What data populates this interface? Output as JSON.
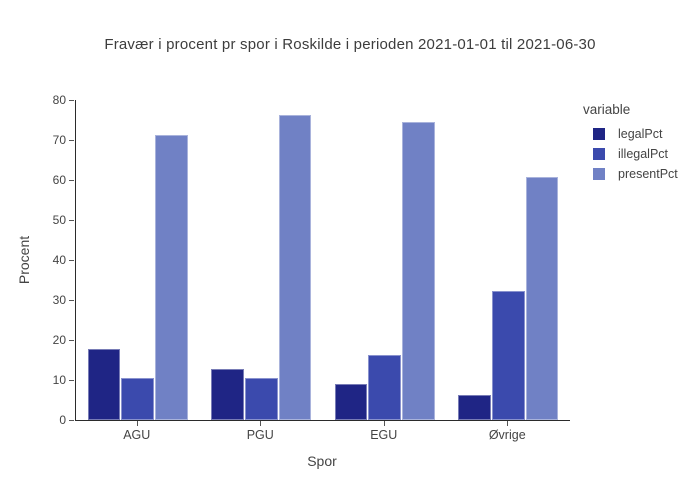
{
  "title": "Fravær i procent pr spor i Roskilde i perioden 2021-01-01 til 2021-06-30",
  "chart_data": {
    "type": "bar",
    "mode": "grouped",
    "title": "Fravær i procent pr spor i Roskilde i perioden 2021-01-01 til 2021-06-30",
    "categories": [
      "AGU",
      "PGU",
      "EGU",
      "Øvrige"
    ],
    "series": [
      {
        "name": "legalPct",
        "color": "#1f2585",
        "values": [
          17.7,
          12.8,
          9.0,
          6.3
        ]
      },
      {
        "name": "illegalPct",
        "color": "#3b4aad",
        "values": [
          10.6,
          10.4,
          16.2,
          32.3
        ]
      },
      {
        "name": "presentPct",
        "color": "#7081c5",
        "values": [
          71.3,
          76.3,
          74.5,
          60.8
        ]
      }
    ],
    "xlabel": "Spor",
    "ylabel": "Procent",
    "ylim": [
      0,
      80
    ],
    "ytick_step": 10,
    "yticks": [
      0,
      10,
      20,
      30,
      40,
      50,
      60,
      70,
      80
    ],
    "grid": false,
    "legend_title": "variable",
    "legend_position": "right",
    "plot_background": "#ffffff",
    "axis_line_color": "#2b2b2b",
    "tick_label_color": "#444444"
  }
}
